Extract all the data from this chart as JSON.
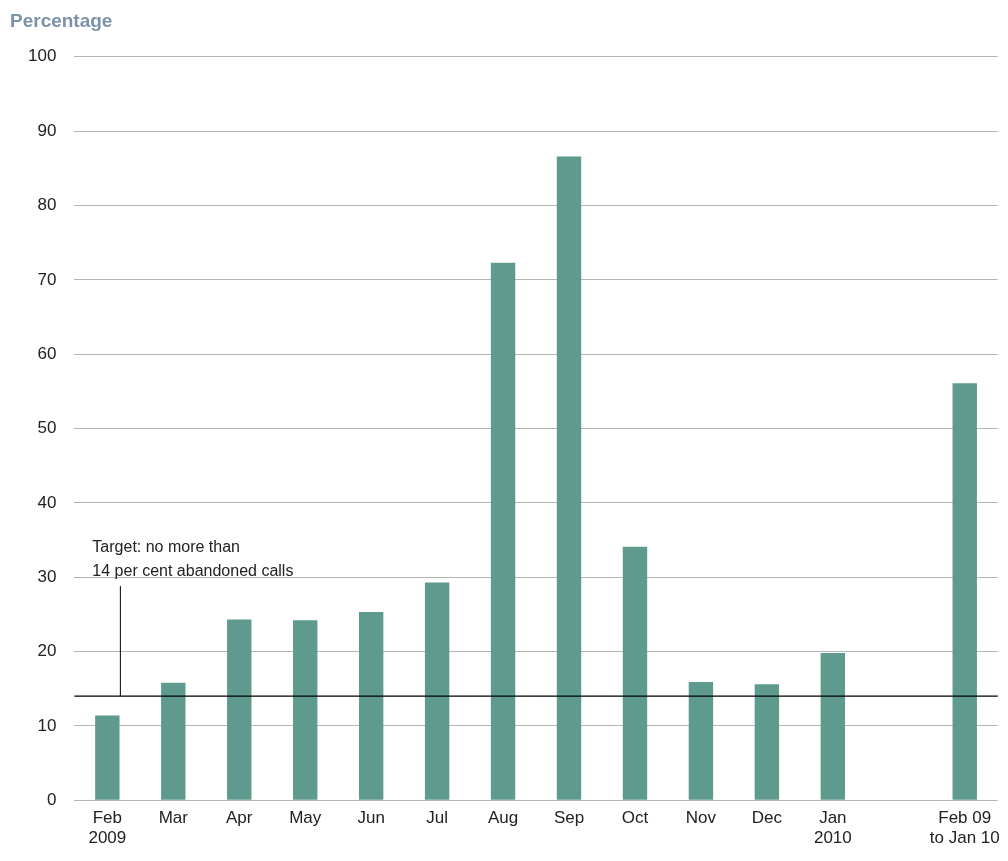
{
  "chart_data": {
    "type": "bar",
    "ylabel": "Percentage",
    "categories": [
      "Feb\n2009",
      "Mar",
      "Apr",
      "May",
      "Jun",
      "Jul",
      "Aug",
      "Sep",
      "Oct",
      "Nov",
      "Dec",
      "Jan\n2010",
      null,
      "Feb 09\nto Jan 10"
    ],
    "values": [
      11.4,
      15.8,
      24.3,
      24.2,
      25.3,
      29.3,
      72.3,
      86.6,
      34.1,
      15.9,
      15.6,
      19.8,
      null,
      56.1
    ],
    "color": "#5f9a8e",
    "ylim": [
      0,
      100
    ],
    "yticks": [
      0,
      10,
      20,
      30,
      40,
      50,
      60,
      70,
      80,
      90,
      100
    ],
    "grid": "y",
    "ref_lines": [
      {
        "axis": "y",
        "value": 14,
        "label": "Target: no more than\n14 per cent abandoned calls",
        "color": "#000000"
      }
    ]
  }
}
